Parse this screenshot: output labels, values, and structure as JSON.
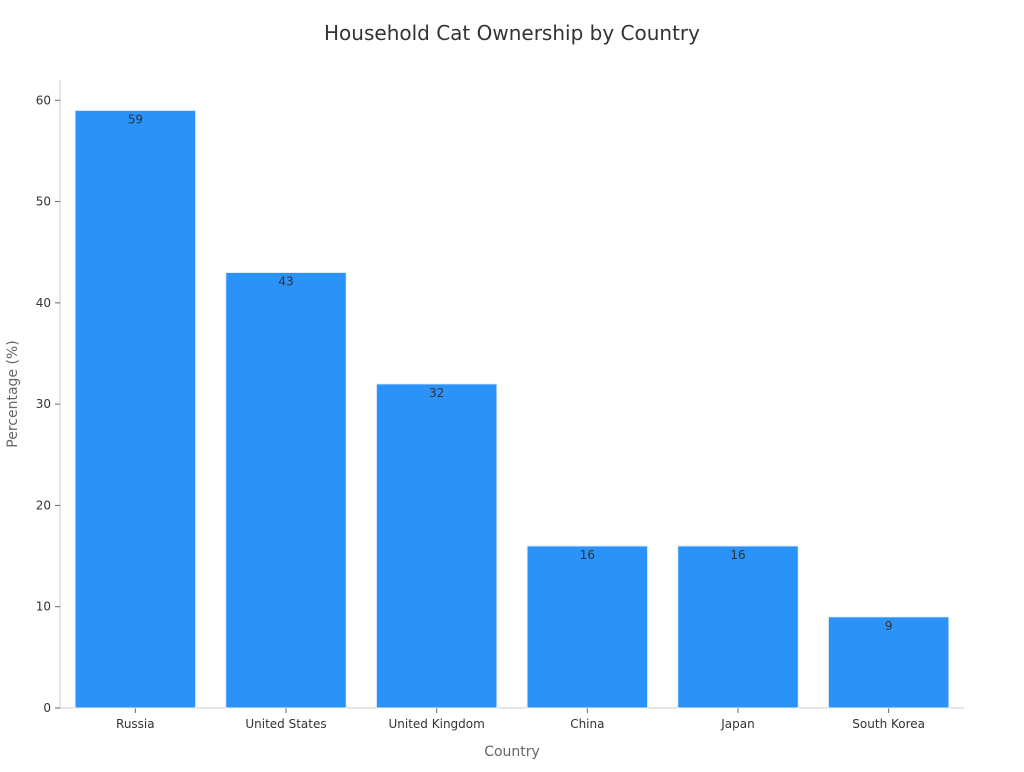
{
  "chart_data": {
    "type": "bar",
    "title": "Household Cat Ownership by Country",
    "xlabel": "Country",
    "ylabel": "Percentage (%)",
    "categories": [
      "Russia",
      "United States",
      "United Kingdom",
      "China",
      "Japan",
      "South Korea"
    ],
    "values": [
      59,
      43,
      32,
      16,
      16,
      9
    ],
    "ylim": [
      0,
      62
    ],
    "yticks": [
      0,
      10,
      20,
      30,
      40,
      50,
      60
    ],
    "grid": false,
    "bar_color": "#2b92f8",
    "data_labels": true
  }
}
